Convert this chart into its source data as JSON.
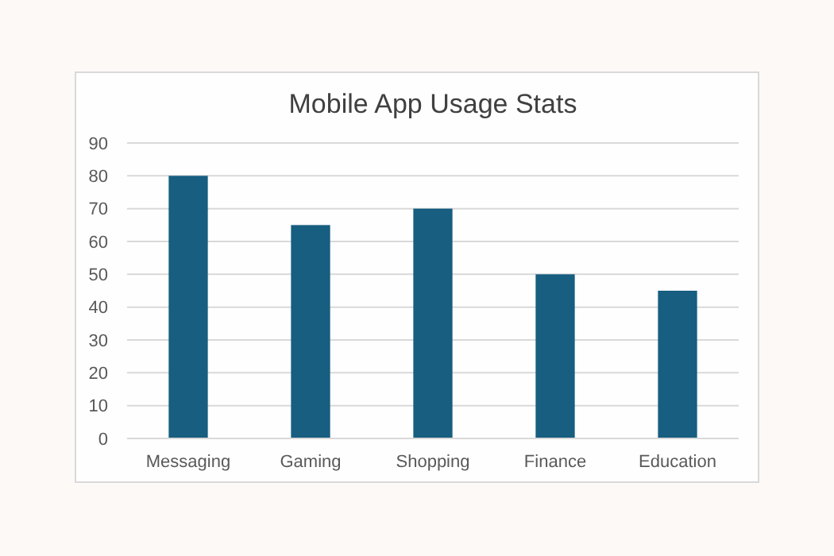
{
  "chart_data": {
    "type": "bar",
    "title": "Mobile App Usage Stats",
    "categories": [
      "Messaging",
      "Gaming",
      "Shopping",
      "Finance",
      "Education"
    ],
    "values": [
      80,
      65,
      70,
      50,
      45
    ],
    "color": "#175e80",
    "ylim": [
      0,
      90
    ],
    "yticks": [
      0,
      10,
      20,
      30,
      40,
      50,
      60,
      70,
      80,
      90
    ],
    "grid": "y"
  }
}
